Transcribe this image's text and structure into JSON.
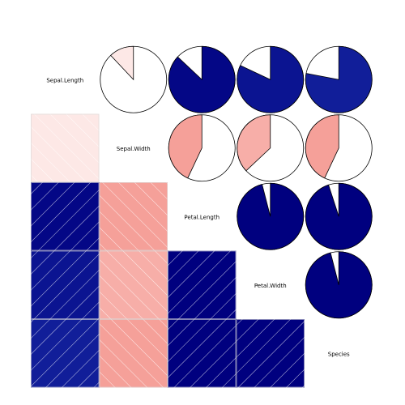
{
  "chart_data": {
    "type": "heatmap",
    "title": "",
    "variables": [
      "Sepal.Length",
      "Sepal.Width",
      "Petal.Length",
      "Petal.Width",
      "Species"
    ],
    "lower_panel": "shade",
    "upper_panel": "pie",
    "correlations": [
      {
        "row": "Sepal.Width",
        "col": "Sepal.Length",
        "r": -0.12
      },
      {
        "row": "Petal.Length",
        "col": "Sepal.Length",
        "r": 0.87
      },
      {
        "row": "Petal.Length",
        "col": "Sepal.Width",
        "r": -0.43
      },
      {
        "row": "Petal.Width",
        "col": "Sepal.Length",
        "r": 0.82
      },
      {
        "row": "Petal.Width",
        "col": "Sepal.Width",
        "r": -0.37
      },
      {
        "row": "Petal.Width",
        "col": "Petal.Length",
        "r": 0.96
      },
      {
        "row": "Species",
        "col": "Sepal.Length",
        "r": 0.78
      },
      {
        "row": "Species",
        "col": "Sepal.Width",
        "r": -0.43
      },
      {
        "row": "Species",
        "col": "Petal.Length",
        "r": 0.95
      },
      {
        "row": "Species",
        "col": "Petal.Width",
        "r": 0.96
      }
    ],
    "colors": {
      "positive_strong": "#00007f",
      "positive_mid": "#1525a0",
      "negative_mid": "#f5a099",
      "negative_weak": "#fde8e6",
      "outline": "#000000",
      "hatch": "#ffffff"
    }
  }
}
